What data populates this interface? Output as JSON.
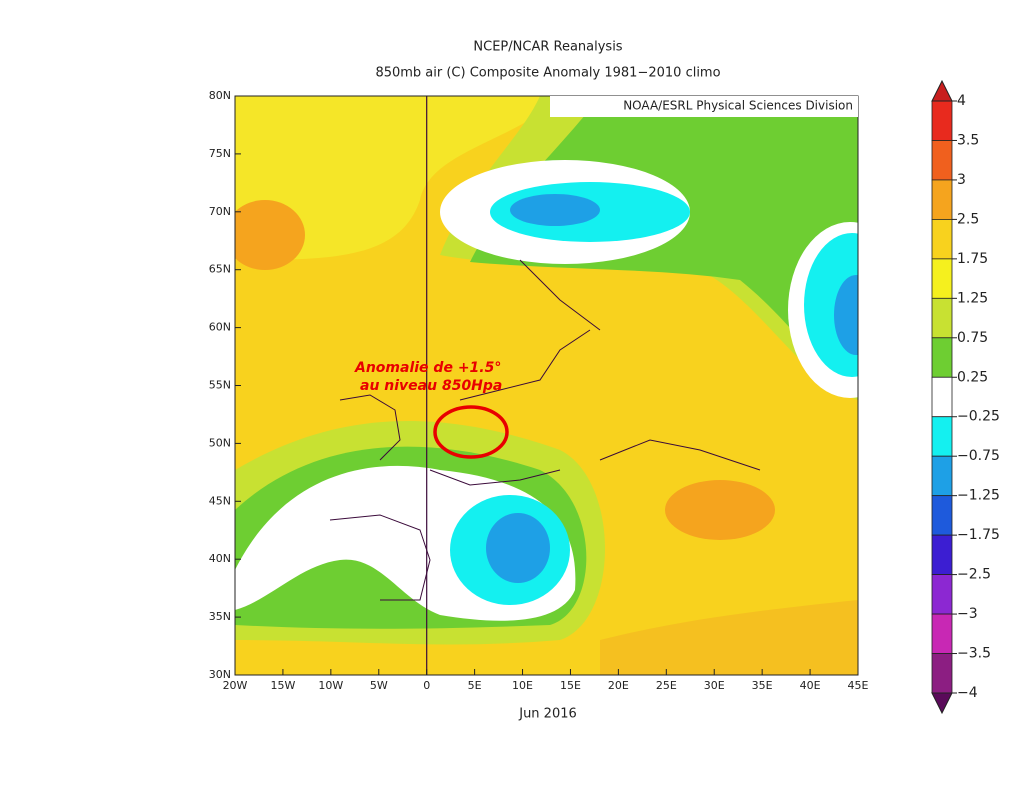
{
  "title": "NCEP/NCAR Reanalysis",
  "subtitle": "850mb air (C) Composite Anomaly 1981−2010 climo",
  "credit": "NOAA/ESRL Physical Sciences Division",
  "annotation": [
    "Anomalie de +1.5°",
    "au niveau 850Hpa"
  ],
  "x_label": "Jun 2016",
  "map": {
    "xlim": [
      -20,
      45
    ],
    "ylim": [
      30,
      80
    ],
    "xticks": [
      {
        "value": -20,
        "label": "20W"
      },
      {
        "value": -15,
        "label": "15W"
      },
      {
        "value": -10,
        "label": "10W"
      },
      {
        "value": -5,
        "label": "5W"
      },
      0,
      {
        "value": 5,
        "label": "5E"
      },
      {
        "value": 10,
        "label": "10E"
      },
      {
        "value": 15,
        "label": "15E"
      },
      {
        "value": 20,
        "label": "20E"
      },
      {
        "value": 25,
        "label": "25E"
      },
      {
        "value": 30,
        "label": "30E"
      },
      {
        "value": 35,
        "label": "35E"
      },
      {
        "value": 40,
        "label": "40E"
      },
      {
        "value": 45,
        "label": "45E"
      }
    ],
    "yticks": [
      {
        "value": 30,
        "label": "30N"
      },
      {
        "value": 35,
        "label": "35N"
      },
      {
        "value": 40,
        "label": "40N"
      },
      {
        "value": 45,
        "label": "45N"
      },
      {
        "value": 50,
        "label": "50N"
      },
      {
        "value": 55,
        "label": "55N"
      },
      {
        "value": 60,
        "label": "60N"
      },
      {
        "value": 65,
        "label": "65N"
      },
      {
        "value": 70,
        "label": "70N"
      },
      {
        "value": 75,
        "label": "75N"
      },
      {
        "value": 80,
        "label": "80N"
      }
    ]
  },
  "colorbar": {
    "ticks": [
      4,
      3.5,
      3,
      2.5,
      1.75,
      1.25,
      0.75,
      0.25,
      {
        "value": -0.25,
        "label": "−0.25"
      },
      {
        "value": -0.75,
        "label": "−0.75"
      },
      {
        "value": -1.25,
        "label": "−1.25"
      },
      {
        "value": -1.75,
        "label": "−1.75"
      },
      {
        "value": -2.5,
        "label": "−2.5"
      },
      {
        "value": -3,
        "label": "−3"
      },
      {
        "value": -3.5,
        "label": "−3.5"
      },
      {
        "value": -4,
        "label": "−4"
      }
    ],
    "colors": [
      "#e82a1e",
      "#f0601e",
      "#f5a41e",
      "#f8d21e",
      "#f5f01e",
      "#c8e132",
      "#6ece32",
      "#ffffff",
      "#14f0f0",
      "#1ea0e6",
      "#1e5adc",
      "#3c1ed2",
      "#8c28d2",
      "#c828b4",
      "#8c1e82"
    ],
    "end_colors": [
      "#c81e1e",
      "#5a0a5a"
    ]
  }
}
